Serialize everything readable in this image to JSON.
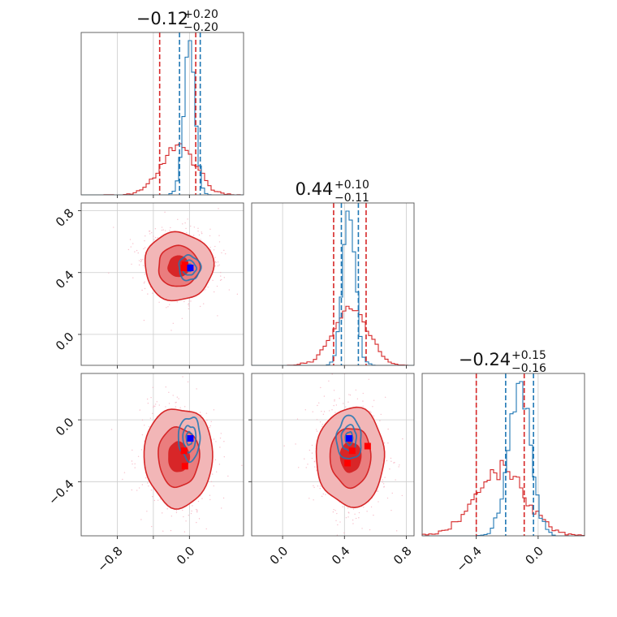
{
  "colors": {
    "red": "#d62728",
    "blue": "#1f77b4",
    "red_fill_1": "#f2b6b7",
    "red_fill_2": "#ea7d7e",
    "red_fill_3": "#d82628",
    "marker_blue": "#0000ff",
    "marker_red": "#ff0000",
    "scatter": "#f4a6b6"
  },
  "chart_data": {
    "type": "corner",
    "parameters": [
      {
        "title": {
          "median": "−0.12",
          "plus": "+0.20",
          "minus": "−0.20"
        },
        "ticks": [
          -0.8,
          -0.4,
          0.0
        ],
        "tick_labels": [
          "−0.8",
          "",
          "0.0"
        ],
        "range": [
          -1.2,
          0.6
        ],
        "truth": 0.01,
        "red": {
          "mean": -0.12,
          "sd": 0.19,
          "quantiles": [
            -0.33,
            0.07
          ]
        },
        "blue": {
          "mean": 0.0,
          "sd": 0.06,
          "quantiles": [
            -0.11,
            0.12
          ]
        }
      },
      {
        "title": {
          "median": "0.44",
          "plus": "+0.10",
          "minus": "−0.11"
        },
        "ticks": [
          0.0,
          0.4,
          0.8
        ],
        "tick_labels": [
          "0.0",
          "0.4",
          "0.8"
        ],
        "range": [
          -0.2,
          0.85
        ],
        "truth": 0.42,
        "red": {
          "mean": 0.44,
          "sd": 0.11,
          "quantiles": [
            0.33,
            0.54
          ]
        },
        "blue": {
          "mean": 0.43,
          "sd": 0.04,
          "quantiles": [
            0.38,
            0.49
          ]
        }
      },
      {
        "title": {
          "median": "−0.24",
          "plus": "+0.15",
          "minus": "−0.16"
        },
        "ticks": [
          -0.4,
          0.0
        ],
        "tick_labels": [
          "−0.4",
          "0.0"
        ],
        "range": [
          -0.75,
          0.3
        ],
        "truth": -0.12,
        "red": {
          "mean": -0.24,
          "sd": 0.16,
          "quantiles": [
            -0.4,
            -0.09
          ]
        },
        "blue": {
          "mean": -0.12,
          "sd": 0.07,
          "quantiles": [
            -0.21,
            -0.03
          ]
        }
      }
    ],
    "panels_2d": [
      {
        "x": 0,
        "y": 1,
        "red_center": [
          -0.12,
          0.44
        ],
        "red_sd": [
          0.19,
          0.11
        ],
        "blue_center": [
          0.0,
          0.43
        ],
        "blue_sd": [
          0.06,
          0.04
        ],
        "truth": [
          0.01,
          0.43
        ],
        "red_markers": [
          [
            -0.06,
            0.43
          ],
          [
            -0.05,
            0.45
          ]
        ]
      },
      {
        "x": 0,
        "y": 2,
        "red_center": [
          -0.12,
          -0.24
        ],
        "red_sd": [
          0.19,
          0.16
        ],
        "blue_center": [
          0.0,
          -0.12
        ],
        "blue_sd": [
          0.06,
          0.07
        ],
        "truth": [
          0.01,
          -0.12
        ],
        "red_markers": [
          [
            -0.06,
            -0.2
          ],
          [
            -0.05,
            -0.3
          ]
        ]
      },
      {
        "x": 1,
        "y": 2,
        "red_center": [
          0.44,
          -0.24
        ],
        "red_sd": [
          0.11,
          0.16
        ],
        "blue_center": [
          0.43,
          -0.12
        ],
        "blue_sd": [
          0.04,
          0.07
        ],
        "truth": [
          0.43,
          -0.12
        ],
        "red_markers": [
          [
            0.45,
            -0.2
          ],
          [
            0.42,
            -0.28
          ],
          [
            0.55,
            -0.17
          ]
        ]
      }
    ],
    "contour_levels_sigma": [
      0.6,
      1.2,
      2.0
    ]
  }
}
